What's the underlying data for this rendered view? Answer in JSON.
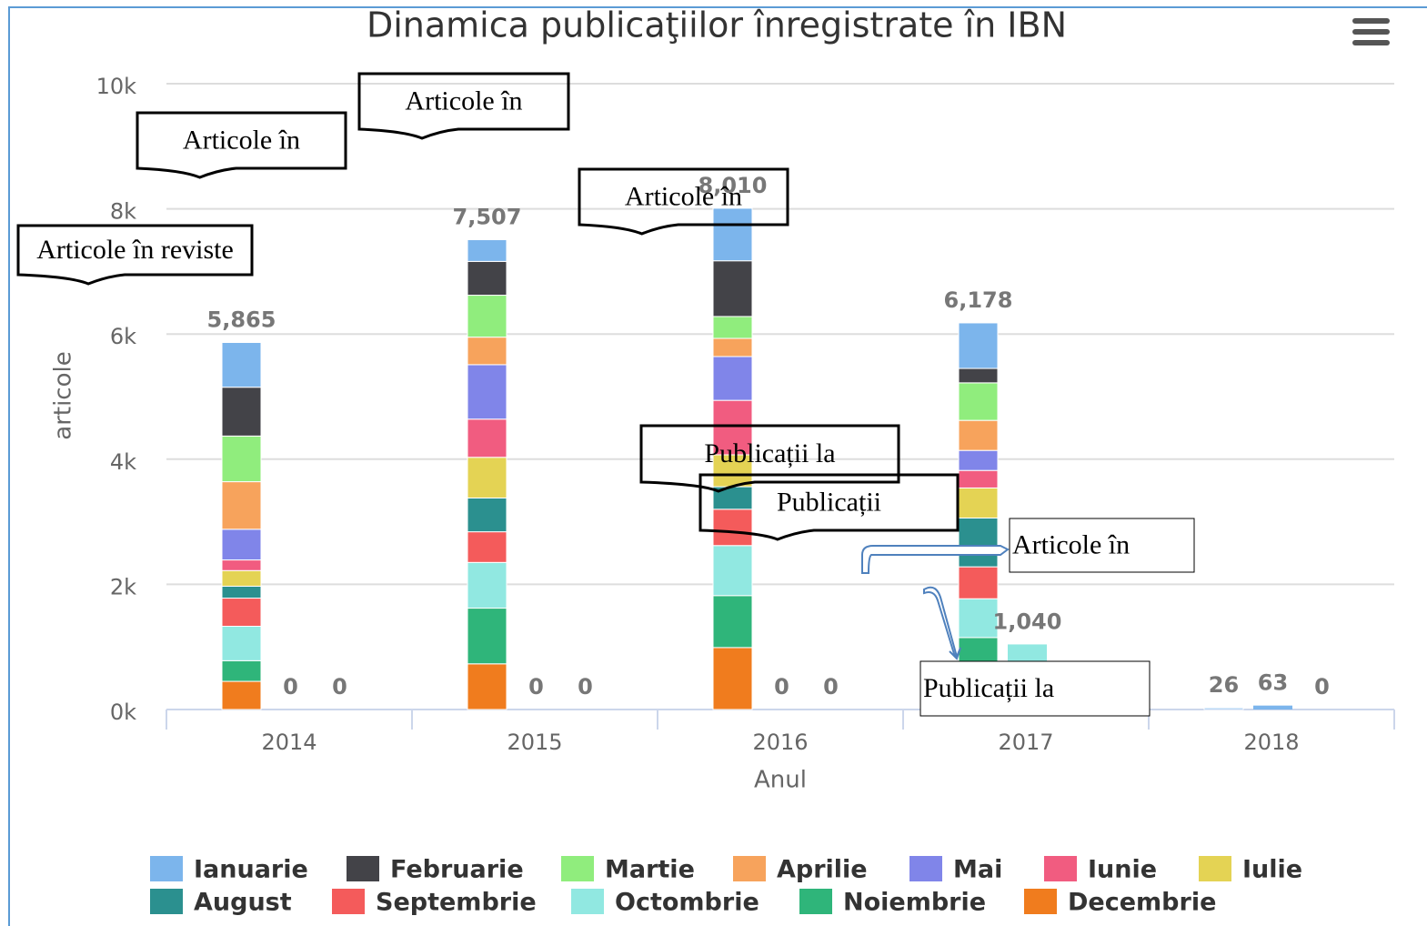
{
  "chart_data": {
    "type": "bar",
    "stacked": true,
    "title": "Dinamica publicaţiilor înregistrate în IBN",
    "y_label": "articole",
    "x_label": "Anul",
    "categories": [
      "2014",
      "2015",
      "2016",
      "2017",
      "2018"
    ],
    "ylim": [
      0,
      10000
    ],
    "yticks": [
      {
        "value": 0,
        "label": "0k"
      },
      {
        "value": 2000,
        "label": "2k"
      },
      {
        "value": 4000,
        "label": "4k"
      },
      {
        "value": 6000,
        "label": "6k"
      },
      {
        "value": 8000,
        "label": "8k"
      },
      {
        "value": 10000,
        "label": "10k"
      }
    ],
    "grid": true,
    "legend": "bottom",
    "series": [
      {
        "name": "Ianuarie",
        "color": "#7cb5ec",
        "values": [
          715,
          347,
          840,
          728,
          26
        ]
      },
      {
        "name": "Februarie",
        "color": "#434348",
        "values": [
          780,
          540,
          890,
          230,
          0
        ]
      },
      {
        "name": "Martie",
        "color": "#90ed7d",
        "values": [
          730,
          670,
          350,
          600,
          0
        ]
      },
      {
        "name": "Aprilie",
        "color": "#f7a35c",
        "values": [
          760,
          440,
          290,
          480,
          0
        ]
      },
      {
        "name": "Mai",
        "color": "#8085e9",
        "values": [
          490,
          870,
          700,
          320,
          0
        ]
      },
      {
        "name": "Iunie",
        "color": "#f15c80",
        "values": [
          170,
          610,
          870,
          280,
          0
        ]
      },
      {
        "name": "Iulie",
        "color": "#e4d354",
        "values": [
          250,
          650,
          510,
          480,
          0
        ]
      },
      {
        "name": "August",
        "color": "#2b908f",
        "values": [
          190,
          540,
          360,
          780,
          0
        ]
      },
      {
        "name": "Septembrie",
        "color": "#f45b5b",
        "values": [
          450,
          490,
          580,
          510,
          0
        ]
      },
      {
        "name": "Octombrie",
        "color": "#91e8e1",
        "values": [
          550,
          730,
          800,
          620,
          0
        ]
      },
      {
        "name": "Noiembrie",
        "color": "#2fb57a",
        "values": [
          330,
          890,
          830,
          1000,
          0
        ]
      },
      {
        "name": "Decembrie",
        "color": "#f07c1e",
        "values": [
          450,
          730,
          990,
          150,
          0
        ]
      }
    ],
    "stack_totals": {
      "values": [
        5865,
        7507,
        8010,
        6178,
        26
      ],
      "value_labels": [
        "5,865",
        "7,507",
        "8,010",
        "6,178",
        "26"
      ]
    },
    "second_stack": {
      "values": [
        0,
        0,
        0,
        1040,
        63
      ],
      "value_labels": [
        "0",
        "0",
        "0",
        "1,040",
        "63"
      ],
      "colors": [
        "#91e8e1",
        "#91e8e1",
        "#91e8e1",
        "#91e8e1",
        "#7cb5ec"
      ]
    },
    "third_stack": {
      "values": [
        0,
        0,
        0,
        0,
        0
      ]
    },
    "annotations": [
      "Articole în reviste",
      "Articole în",
      "Articole în",
      "Articole în",
      "Publicații la",
      "Publicații",
      "Articole în",
      "Publicații la"
    ]
  }
}
